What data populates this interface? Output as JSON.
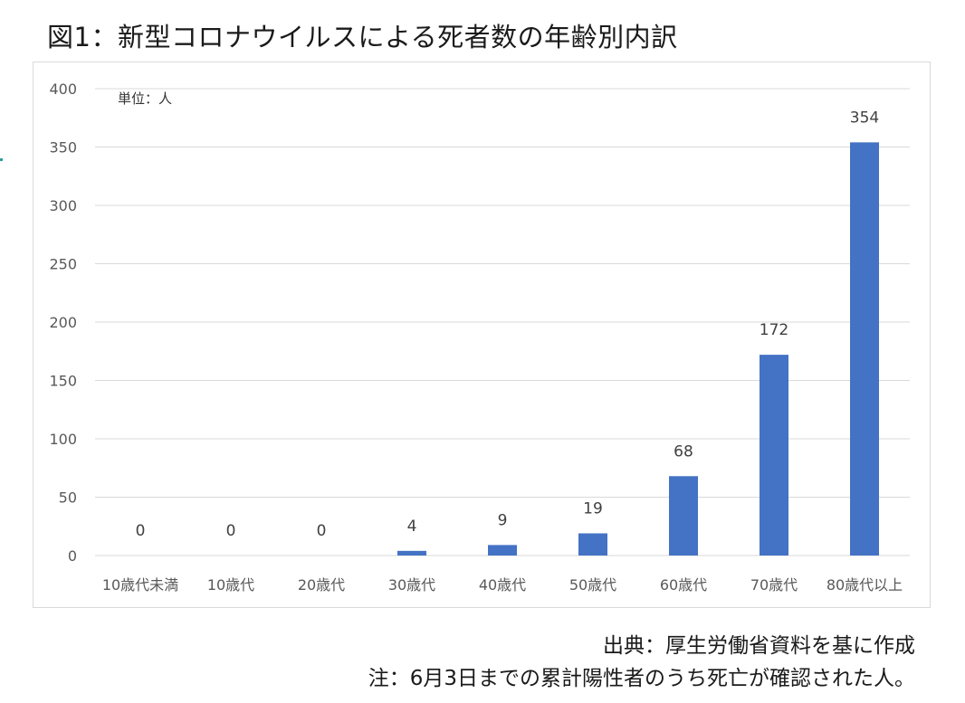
{
  "title": "図1：新型コロナウイルスによる死者数の年齢別内訳",
  "unit_label": "単位：人",
  "source": "出典：厚生労働省資料を基に作成",
  "note": "注：6月3日までの累計陽性者のうち死亡が確認された人。",
  "chart_data": {
    "type": "bar",
    "title": "",
    "xlabel": "",
    "ylabel": "",
    "categories": [
      "10歳代未満",
      "10歳代",
      "20歳代",
      "30歳代",
      "40歳代",
      "50歳代",
      "60歳代",
      "70歳代",
      "80歳代以上"
    ],
    "values": [
      0,
      0,
      0,
      4,
      9,
      19,
      68,
      172,
      354
    ],
    "ylim": [
      0,
      400
    ],
    "yticks": [
      0,
      50,
      100,
      150,
      200,
      250,
      300,
      350,
      400
    ],
    "grid": true,
    "bar_color": "#4472C4",
    "grid_color": "#d9d9d9",
    "data_labels": true
  }
}
